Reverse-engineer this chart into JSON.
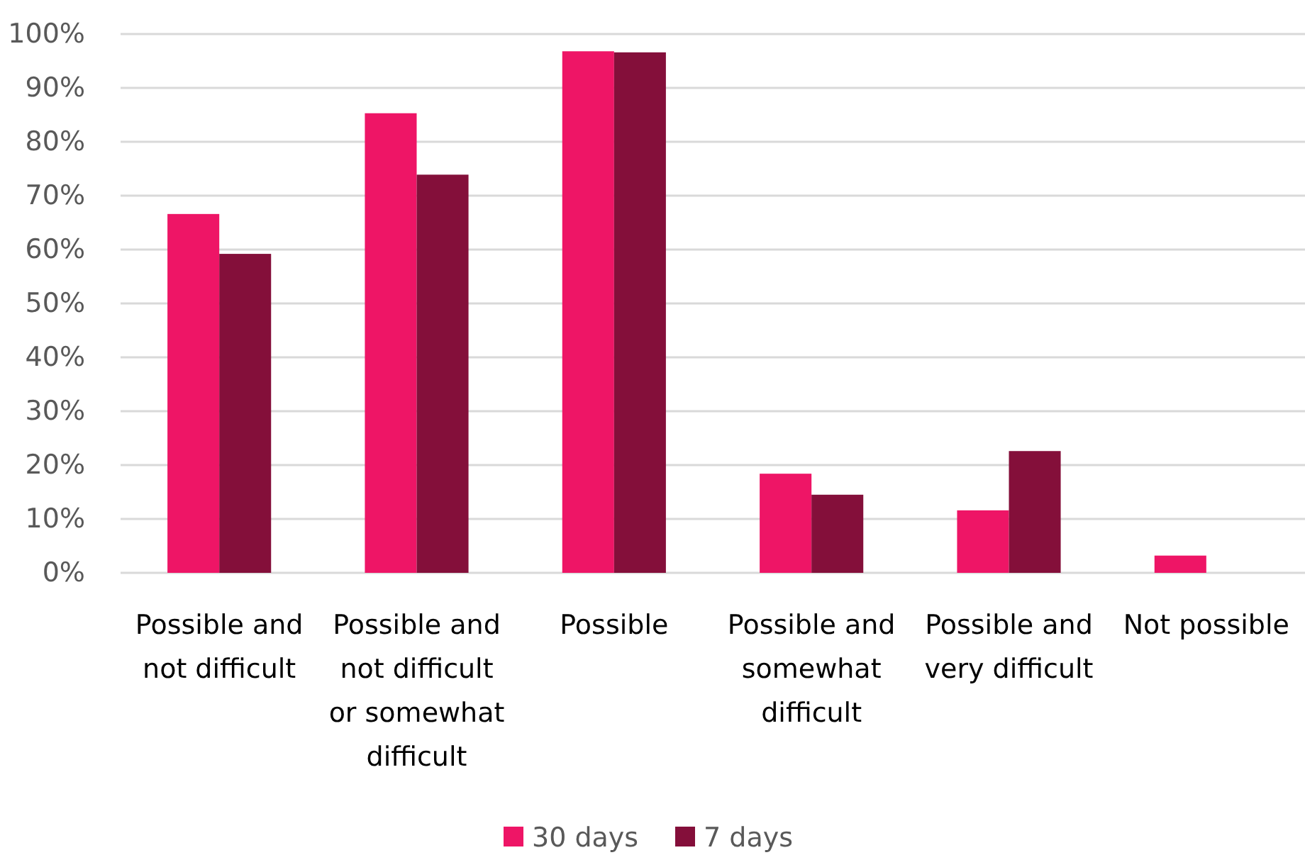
{
  "chart_data": {
    "type": "bar",
    "categories": [
      "Possible and not difficult",
      "Possible and not difficult or somewhat difficult",
      "Possible",
      "Possible and somewhat difficult",
      "Possible and very difficult",
      "Not possible"
    ],
    "series": [
      {
        "name": "30 days",
        "color": "#ee1566",
        "values": [
          66.6,
          85.3,
          96.8,
          18.4,
          11.6,
          3.2
        ]
      },
      {
        "name": "7 days",
        "color": "#840f3a",
        "values": [
          59.2,
          73.9,
          96.6,
          14.5,
          22.6,
          null
        ]
      }
    ],
    "ylim": [
      0,
      100
    ],
    "yticks": [
      {
        "value": 0,
        "label": "0%"
      },
      {
        "value": 10,
        "label": "10%"
      },
      {
        "value": 20,
        "label": "20%"
      },
      {
        "value": 30,
        "label": "30%"
      },
      {
        "value": 40,
        "label": "40%"
      },
      {
        "value": 50,
        "label": "50%"
      },
      {
        "value": 60,
        "label": "60%"
      },
      {
        "value": 70,
        "label": "70%"
      },
      {
        "value": 80,
        "label": "80%"
      },
      {
        "value": 90,
        "label": "90%"
      },
      {
        "value": 100,
        "label": "100%"
      }
    ],
    "grid": "y",
    "legend": "bottom"
  }
}
